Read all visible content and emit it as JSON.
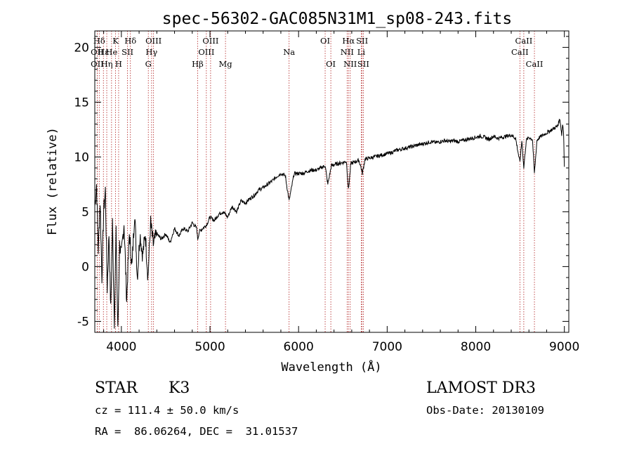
{
  "chart_data": {
    "type": "line",
    "title": "spec-56302-GAC085N31M1_sp08-243.fits",
    "xlabel": "Wavelength (Å)",
    "ylabel": "Flux (relative)",
    "xlim": [
      3700,
      9050
    ],
    "ylim": [
      -6,
      21.5
    ],
    "xticks": [
      4000,
      5000,
      6000,
      7000,
      8000,
      9000
    ],
    "yticks": [
      -5,
      0,
      5,
      10,
      15,
      20
    ],
    "series": [
      {
        "name": "flux",
        "x": [
          3700,
          3720,
          3740,
          3760,
          3780,
          3800,
          3820,
          3840,
          3860,
          3880,
          3900,
          3920,
          3940,
          3960,
          3980,
          4000,
          4030,
          4060,
          4090,
          4120,
          4150,
          4180,
          4210,
          4240,
          4270,
          4300,
          4330,
          4360,
          4400,
          4450,
          4500,
          4550,
          4600,
          4650,
          4700,
          4750,
          4800,
          4850,
          4861,
          4880,
          4920,
          4960,
          5000,
          5050,
          5100,
          5150,
          5200,
          5250,
          5300,
          5350,
          5400,
          5450,
          5500,
          5550,
          5600,
          5650,
          5700,
          5750,
          5800,
          5850,
          5893,
          5950,
          6000,
          6050,
          6100,
          6150,
          6200,
          6250,
          6300,
          6330,
          6370,
          6400,
          6450,
          6500,
          6540,
          6563,
          6590,
          6620,
          6650,
          6680,
          6700,
          6720,
          6750,
          6800,
          6850,
          6900,
          6950,
          7000,
          7050,
          7100,
          7150,
          7200,
          7250,
          7300,
          7350,
          7400,
          7450,
          7500,
          7550,
          7600,
          7650,
          7700,
          7750,
          7800,
          7850,
          7900,
          7950,
          8000,
          8050,
          8100,
          8150,
          8200,
          8250,
          8300,
          8350,
          8400,
          8450,
          8498,
          8520,
          8542,
          8570,
          8600,
          8640,
          8662,
          8690,
          8720,
          8760,
          8800,
          8840,
          8880,
          8920,
          8950,
          8970,
          8980,
          8990,
          9000
        ],
        "values": [
          5.5,
          7.5,
          1.5,
          6,
          -1,
          5,
          7,
          -2,
          3,
          -4,
          4,
          -5,
          3,
          -6,
          2,
          1,
          4,
          -3,
          3,
          0,
          5,
          -1,
          3,
          1,
          3,
          -1,
          4,
          2,
          3,
          2.5,
          3,
          2.2,
          3.5,
          2.8,
          3.5,
          3.2,
          4,
          3.5,
          2.5,
          3.2,
          3.5,
          3.8,
          4.5,
          4.2,
          4.8,
          5,
          4.5,
          5.5,
          5,
          6,
          5.8,
          6.2,
          6.5,
          7,
          7.2,
          7.5,
          7.8,
          8.2,
          8.5,
          8.3,
          6,
          8.5,
          8.5,
          8.5,
          8.7,
          8.8,
          8.8,
          9,
          9.2,
          7.5,
          9.2,
          9.3,
          9.4,
          9.5,
          9.6,
          7,
          9.4,
          9.5,
          9.6,
          9.7,
          9.2,
          8.5,
          9.8,
          9.9,
          10,
          10.1,
          10.2,
          10.3,
          10.4,
          10.6,
          10.7,
          10.8,
          10.9,
          11,
          11.1,
          11.2,
          11.3,
          11.4,
          11.3,
          11.4,
          11.5,
          11.4,
          11.5,
          11.4,
          11.5,
          11.6,
          11.7,
          11.8,
          11.9,
          11.8,
          11.6,
          11.9,
          11.7,
          11.8,
          11.9,
          12,
          11.7,
          9.5,
          11.5,
          9,
          11.5,
          11.8,
          11.6,
          8.5,
          11.5,
          11.8,
          12,
          12.2,
          12.4,
          12.6,
          12.8,
          13.5,
          12,
          13,
          12.5,
          9
        ]
      }
    ],
    "spectral_lines": [
      {
        "label": "Hδ",
        "wavelength": 3750,
        "row": 1
      },
      {
        "label": "OII",
        "wavelength": 3727,
        "row": 2
      },
      {
        "label": "OII",
        "wavelength": 3727,
        "row": 3
      },
      {
        "label": "Hε",
        "wavelength": 3797,
        "row": 2
      },
      {
        "label": "Hη",
        "wavelength": 3835,
        "row": 3
      },
      {
        "label": "He",
        "wavelength": 3889,
        "row": 2
      },
      {
        "label": "K",
        "wavelength": 3934,
        "row": 1
      },
      {
        "label": "H",
        "wavelength": 3969,
        "row": 3
      },
      {
        "label": "SII",
        "wavelength": 4069,
        "row": 2
      },
      {
        "label": "Hδ",
        "wavelength": 4102,
        "row": 1
      },
      {
        "label": "OIII",
        "wavelength": 4363,
        "row": 1
      },
      {
        "label": "Hγ",
        "wavelength": 4341,
        "row": 2
      },
      {
        "label": "G",
        "wavelength": 4304,
        "row": 3
      },
      {
        "label": "Hβ",
        "wavelength": 4861,
        "row": 3
      },
      {
        "label": "OIII",
        "wavelength": 5007,
        "row": 1
      },
      {
        "label": "OIII",
        "wavelength": 4959,
        "row": 2
      },
      {
        "label": "Mg",
        "wavelength": 5175,
        "row": 3
      },
      {
        "label": "Na",
        "wavelength": 5893,
        "row": 2
      },
      {
        "label": "OI",
        "wavelength": 6300,
        "row": 1
      },
      {
        "label": "OI",
        "wavelength": 6364,
        "row": 3
      },
      {
        "label": "Hα",
        "wavelength": 6563,
        "row": 1
      },
      {
        "label": "NII",
        "wavelength": 6548,
        "row": 2
      },
      {
        "label": "NII",
        "wavelength": 6583,
        "row": 3
      },
      {
        "label": "SII",
        "wavelength": 6717,
        "row": 1
      },
      {
        "label": "SII",
        "wavelength": 6731,
        "row": 3
      },
      {
        "label": "Li",
        "wavelength": 6707,
        "row": 2
      },
      {
        "label": "CaII",
        "wavelength": 8542,
        "row": 1
      },
      {
        "label": "CaII",
        "wavelength": 8498,
        "row": 2
      },
      {
        "label": "CaII",
        "wavelength": 8662,
        "row": 3
      }
    ]
  },
  "info": {
    "object_class": "STAR",
    "subclass": "K3",
    "survey": "LAMOST DR3",
    "cz": "cz = 111.4 ± 50.0 km/s",
    "obs_date": "Obs-Date: 20130109",
    "coords": "RA =  86.06264, DEC =  31.01537"
  }
}
